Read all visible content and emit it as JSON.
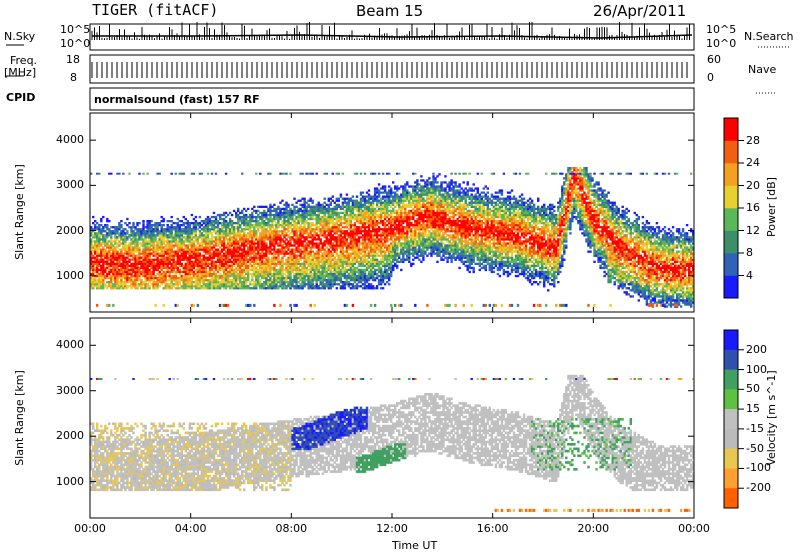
{
  "header": {
    "radar": "TIGER (fitACF)",
    "beam": "Beam 15",
    "date": "26/Apr/2011"
  },
  "strip": {
    "nsky_label": "N.Sky",
    "nsearch_label": "N.Search",
    "nsky_ticks": [
      "10^5",
      "10^0"
    ],
    "nsearch_ticks": [
      "10^5",
      "10^0"
    ],
    "freq_label_1": "Freq.",
    "freq_label_2": "[MHz]",
    "freq_ticks": [
      "18",
      "8"
    ],
    "nave_label": "Nave",
    "nave_ticks": [
      "60",
      "0"
    ],
    "cpid_label": "CPID",
    "cpid_value": "normalsound (fast) 157 RF"
  },
  "colors": {
    "power_scale": [
      "#1a1aff",
      "#2f62b8",
      "#3c8f6a",
      "#5ab85a",
      "#e8d030",
      "#f5a020",
      "#f06010",
      "#ff0000"
    ],
    "velocity_scale": [
      "#ff0000",
      "#ff6000",
      "#ffa030",
      "#e8c850",
      "#bbbbbb",
      "#c0c0c0",
      "#60c040",
      "#40a060",
      "#3050b0",
      "#1a1aff"
    ],
    "ground_scatter": "#b8b8b8"
  },
  "chart_data": [
    {
      "type": "heatmap",
      "name_role": "power panel",
      "xlabel": "Time UT",
      "x_ticks": [
        "00:00",
        "04:00",
        "08:00",
        "12:00",
        "16:00",
        "20:00",
        "00:00"
      ],
      "xlim_hours": [
        0,
        24
      ],
      "ylabel": "Slant Range [km]",
      "y_ticks": [
        1000,
        2000,
        3000,
        4000
      ],
      "ylim": [
        200,
        4600
      ],
      "colorbar_label": "Power [dB]",
      "colorbar_ticks": [
        4,
        8,
        12,
        16,
        20,
        24,
        28
      ],
      "colorbar_range": [
        0,
        32
      ],
      "echo_band": [
        {
          "t": 0,
          "r": 1300
        },
        {
          "t": 2,
          "r": 1250
        },
        {
          "t": 4,
          "r": 1350
        },
        {
          "t": 6,
          "r": 1550
        },
        {
          "t": 8,
          "r": 1700
        },
        {
          "t": 10,
          "r": 1850
        },
        {
          "t": 12,
          "r": 2050
        },
        {
          "t": 13.5,
          "r": 2300
        },
        {
          "t": 15,
          "r": 2050
        },
        {
          "t": 17,
          "r": 1850
        },
        {
          "t": 18.5,
          "r": 1600
        },
        {
          "t": 19.2,
          "r": 3200
        },
        {
          "t": 20,
          "r": 2200
        },
        {
          "t": 21,
          "r": 1600
        },
        {
          "t": 22.5,
          "r": 1150
        },
        {
          "t": 24,
          "r": 1100
        }
      ]
    },
    {
      "type": "heatmap",
      "name_role": "velocity panel",
      "xlabel": "Time UT",
      "x_ticks": [
        "00:00",
        "04:00",
        "08:00",
        "12:00",
        "16:00",
        "20:00",
        "00:00"
      ],
      "xlim_hours": [
        0,
        24
      ],
      "ylabel": "Slant Range [km]",
      "y_ticks": [
        1000,
        2000,
        3000,
        4000
      ],
      "ylim": [
        200,
        4600
      ],
      "colorbar_label": "Velocity [m s^-1]",
      "colorbar_ticks": [
        200,
        100,
        50,
        15,
        -15,
        -50,
        -100,
        -200
      ],
      "features": [
        {
          "label": "negative velocity band",
          "t_range": [
            8,
            11
          ],
          "r_range": [
            1700,
            2600
          ],
          "velocity": 200
        },
        {
          "label": "positive velocity patch",
          "t_range": [
            10.5,
            12.5
          ],
          "r_range": [
            1200,
            1800
          ],
          "velocity": 75
        },
        {
          "label": "ground scatter band",
          "t_range": [
            0,
            24
          ],
          "r_range": [
            900,
            2400
          ],
          "velocity": 0
        }
      ]
    }
  ]
}
